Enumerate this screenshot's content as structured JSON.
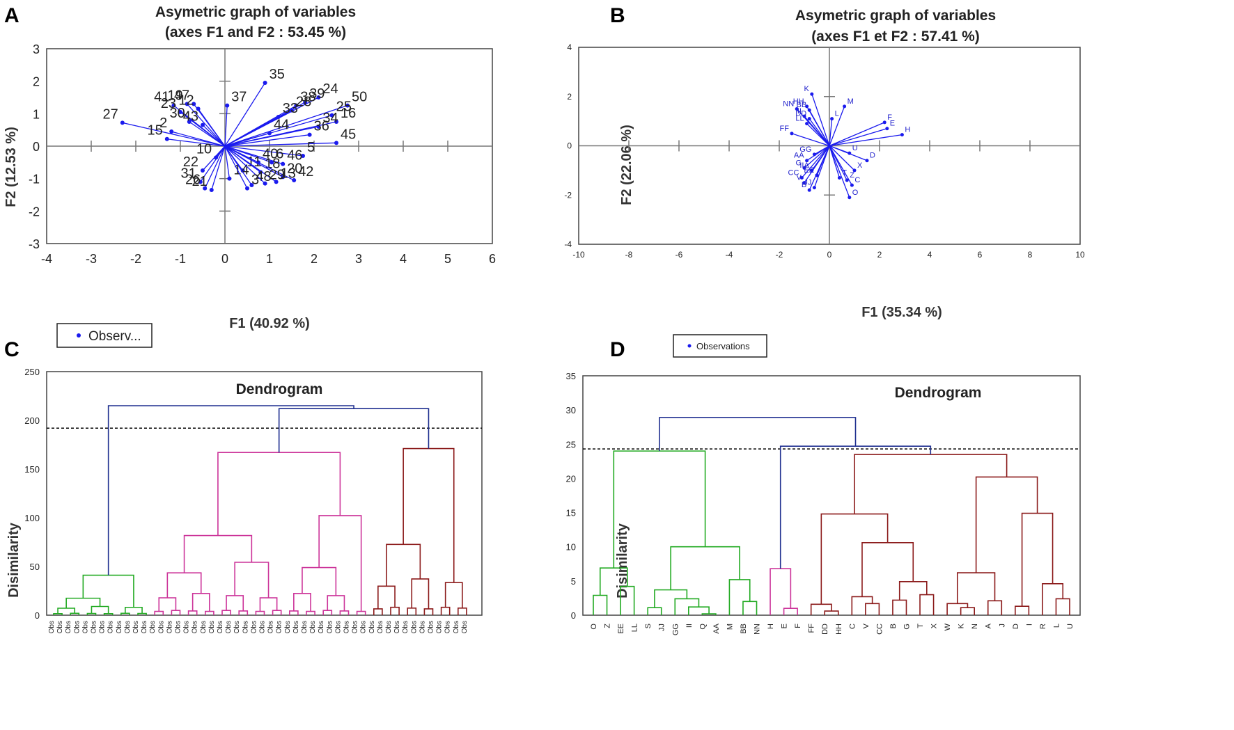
{
  "chart_data": [
    {
      "panel": "A",
      "type": "scatter",
      "title": "Asymetric graph of variables",
      "subtitle": "(axes F1 and F2 : 53.45 %)",
      "xlabel": "F1 (40.92 %)",
      "ylabel": "F2 (12.53 %)",
      "xlim": [
        -4,
        6
      ],
      "ylim": [
        -3,
        3
      ],
      "xticks": [
        -4,
        -3,
        -2,
        -1,
        0,
        1,
        2,
        3,
        4,
        5,
        6
      ],
      "yticks": [
        -3,
        -2,
        -1,
        0,
        1,
        2,
        3
      ],
      "legend": "Observ...",
      "vectors_from_origin": true,
      "points": [
        {
          "label": "27",
          "x": -2.3,
          "y": 0.72
        },
        {
          "label": "2",
          "x": -1.2,
          "y": 0.45
        },
        {
          "label": "15",
          "x": -1.3,
          "y": 0.22
        },
        {
          "label": "41",
          "x": -1.15,
          "y": 1.25
        },
        {
          "label": "23",
          "x": -1.0,
          "y": 1.05
        },
        {
          "label": "19",
          "x": -0.85,
          "y": 1.3
        },
        {
          "label": "47",
          "x": -0.7,
          "y": 1.3
        },
        {
          "label": "30",
          "x": -0.8,
          "y": 0.75
        },
        {
          "label": "43",
          "x": -0.5,
          "y": 0.65
        },
        {
          "label": "12",
          "x": -0.6,
          "y": 1.15
        },
        {
          "label": "35",
          "x": 0.9,
          "y": 1.95
        },
        {
          "label": "37",
          "x": 0.05,
          "y": 1.25
        },
        {
          "label": "24",
          "x": 2.1,
          "y": 1.5
        },
        {
          "label": "39",
          "x": 1.8,
          "y": 1.35
        },
        {
          "label": "38",
          "x": 1.6,
          "y": 1.25
        },
        {
          "label": "28",
          "x": 1.5,
          "y": 1.1
        },
        {
          "label": "33",
          "x": 1.2,
          "y": 0.9
        },
        {
          "label": "50",
          "x": 2.75,
          "y": 1.25
        },
        {
          "label": "25",
          "x": 2.4,
          "y": 0.95
        },
        {
          "label": "16",
          "x": 2.5,
          "y": 0.75
        },
        {
          "label": "34",
          "x": 2.1,
          "y": 0.6
        },
        {
          "label": "36",
          "x": 1.9,
          "y": 0.35
        },
        {
          "label": "44",
          "x": 1.0,
          "y": 0.4
        },
        {
          "label": "45",
          "x": 2.5,
          "y": 0.1
        },
        {
          "label": "5",
          "x": 1.75,
          "y": -0.3
        },
        {
          "label": "10",
          "x": -0.2,
          "y": -0.35
        },
        {
          "label": "40",
          "x": 0.75,
          "y": -0.5
        },
        {
          "label": "6",
          "x": 1.05,
          "y": -0.5
        },
        {
          "label": "46",
          "x": 1.3,
          "y": -0.55
        },
        {
          "label": "11",
          "x": 0.4,
          "y": -0.75
        },
        {
          "label": "18",
          "x": 0.8,
          "y": -0.8
        },
        {
          "label": "20",
          "x": 1.3,
          "y": -0.95
        },
        {
          "label": "42",
          "x": 1.55,
          "y": -1.05
        },
        {
          "label": "13",
          "x": 1.15,
          "y": -1.1
        },
        {
          "label": "22",
          "x": -0.5,
          "y": -0.75
        },
        {
          "label": "31",
          "x": -0.55,
          "y": -1.1
        },
        {
          "label": "26",
          "x": -0.45,
          "y": -1.3
        },
        {
          "label": "21",
          "x": -0.3,
          "y": -1.35
        },
        {
          "label": "14",
          "x": 0.1,
          "y": -1.0
        },
        {
          "label": "48",
          "x": 0.6,
          "y": -1.2
        },
        {
          "label": "29",
          "x": 0.9,
          "y": -1.15
        },
        {
          "label": "3",
          "x": 0.5,
          "y": -1.3
        }
      ]
    },
    {
      "panel": "B",
      "type": "scatter",
      "title": "Asymetric graph of variables",
      "subtitle": "(axes F1 et F2 : 57.41 %)",
      "xlabel": "F1 (35.34 %)",
      "ylabel": "F2 (22.06 %)",
      "xlim": [
        -10,
        10
      ],
      "ylim": [
        -4,
        4
      ],
      "xticks": [
        -10,
        -8,
        -6,
        -4,
        -2,
        0,
        2,
        4,
        6,
        8,
        10
      ],
      "yticks": [
        -4,
        -2,
        0,
        2,
        4
      ],
      "legend": "Observations",
      "vectors_from_origin": true,
      "points": [
        {
          "label": "K",
          "x": -0.7,
          "y": 2.1
        },
        {
          "label": "M",
          "x": 0.6,
          "y": 1.6
        },
        {
          "label": "NN",
          "x": -1.3,
          "y": 1.5
        },
        {
          "label": "HH",
          "x": -0.9,
          "y": 1.6
        },
        {
          "label": "BB",
          "x": -0.8,
          "y": 1.45
        },
        {
          "label": "II",
          "x": -1.0,
          "y": 1.2
        },
        {
          "label": "DD",
          "x": -0.8,
          "y": 1.1
        },
        {
          "label": "LL",
          "x": -0.9,
          "y": 0.9
        },
        {
          "label": "L",
          "x": 0.1,
          "y": 1.1
        },
        {
          "label": "FF",
          "x": -1.5,
          "y": 0.5
        },
        {
          "label": "F",
          "x": 2.2,
          "y": 0.95
        },
        {
          "label": "E",
          "x": 2.3,
          "y": 0.7
        },
        {
          "label": "H",
          "x": 2.9,
          "y": 0.45
        },
        {
          "label": "GG",
          "x": -0.6,
          "y": -0.35
        },
        {
          "label": "AA",
          "x": -0.9,
          "y": -0.6
        },
        {
          "label": "G",
          "x": -1.0,
          "y": -0.9
        },
        {
          "label": "IIA",
          "x": -0.7,
          "y": -1.0
        },
        {
          "label": "EE",
          "x": -0.5,
          "y": -1.2
        },
        {
          "label": "CC",
          "x": -1.1,
          "y": -1.3
        },
        {
          "label": "V",
          "x": -1.0,
          "y": -1.5
        },
        {
          "label": "B",
          "x": -0.8,
          "y": -1.8
        },
        {
          "label": "JJ",
          "x": -0.6,
          "y": -1.7
        },
        {
          "label": "D",
          "x": 1.5,
          "y": -0.6
        },
        {
          "label": "X",
          "x": 1.0,
          "y": -1.0
        },
        {
          "label": "U",
          "x": 0.8,
          "y": -0.3
        },
        {
          "label": "T",
          "x": 0.4,
          "y": -1.3
        },
        {
          "label": "Z",
          "x": 0.7,
          "y": -1.4
        },
        {
          "label": "C",
          "x": 0.9,
          "y": -1.6
        },
        {
          "label": "O",
          "x": 0.8,
          "y": -2.1
        }
      ]
    },
    {
      "panel": "C",
      "type": "dendrogram",
      "title": "Dendrogram",
      "ylabel": "Disimilarity",
      "ylim": [
        0,
        250
      ],
      "yticks": [
        0,
        50,
        100,
        150,
        200,
        250
      ],
      "cut_height": 192,
      "root_height": 215,
      "clusters": [
        {
          "color": "#22aa22",
          "leaf_count": 12,
          "merge_height": 41
        },
        {
          "color": "#cc3399",
          "leaf_count": 26,
          "merge_height": 167
        },
        {
          "color": "#8b1a1a",
          "leaf_count": 12,
          "merge_height": 171
        }
      ],
      "upper_merge_height": 212,
      "leaf_labels_illegible": true
    },
    {
      "panel": "D",
      "type": "dendrogram",
      "title": "Dendrogram",
      "ylabel": "Disimilarity",
      "ylim": [
        0,
        35
      ],
      "yticks": [
        0,
        5,
        10,
        15,
        20,
        25,
        30,
        35
      ],
      "cut_height": 24.3,
      "root_height": 28.9,
      "upper_merge_height": 24.7,
      "leaves": [
        "O",
        "Z",
        "EE",
        "LL",
        "S",
        "JJ",
        "GG",
        "II",
        "Q",
        "AA",
        "M",
        "BB",
        "NN",
        "H",
        "E",
        "F",
        "FF",
        "DD",
        "HH",
        "C",
        "V",
        "CC",
        "B",
        "G",
        "T",
        "X",
        "W",
        "K",
        "N",
        "A",
        "J",
        "D",
        "I",
        "R",
        "L",
        "U"
      ],
      "leaf_colors": [
        "#22aa22",
        "#22aa22",
        "#22aa22",
        "#22aa22",
        "#22aa22",
        "#22aa22",
        "#22aa22",
        "#22aa22",
        "#22aa22",
        "#22aa22",
        "#22aa22",
        "#22aa22",
        "#22aa22",
        "#cc3399",
        "#cc3399",
        "#8b1a1a",
        "#8b1a1a",
        "#8b1a1a",
        "#8b1a1a",
        "#8b1a1a",
        "#8b1a1a",
        "#8b1a1a",
        "#8b1a1a",
        "#8b1a1a",
        "#8b1a1a",
        "#8b1a1a",
        "#8b1a1a",
        "#8b1a1a",
        "#8b1a1a",
        "#8b1a1a",
        "#8b1a1a",
        "#8b1a1a",
        "#8b1a1a",
        "#8b1a1a",
        "#8b1a1a",
        "#8b1a1a"
      ]
    }
  ],
  "colors": {
    "vector": "#1a1aee",
    "frame": "#444444",
    "root": "#1f2f8f",
    "green": "#22aa22",
    "pink": "#cc3399",
    "maroon": "#8b1a1a"
  }
}
